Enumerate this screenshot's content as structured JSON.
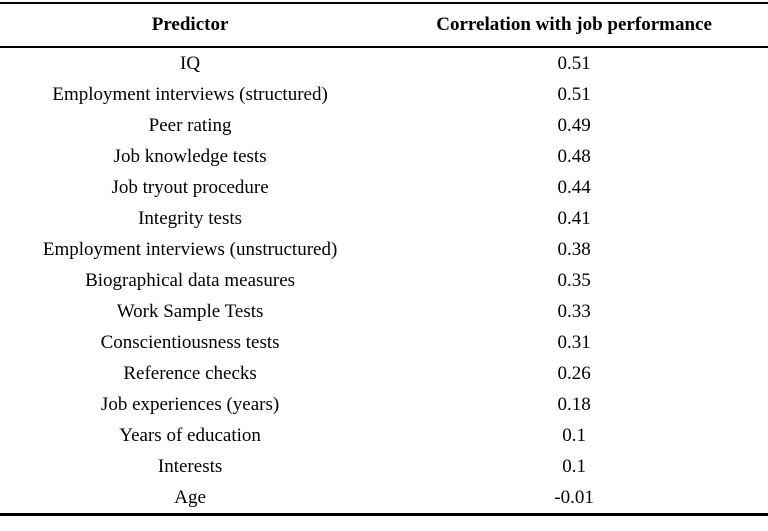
{
  "chart_data": {
    "type": "table",
    "title": "",
    "columns": [
      "Predictor",
      "Correlation with job performance"
    ],
    "rows": [
      {
        "predictor": "IQ",
        "correlation": "0.51"
      },
      {
        "predictor": "Employment interviews (structured)",
        "correlation": "0.51"
      },
      {
        "predictor": "Peer rating",
        "correlation": "0.49"
      },
      {
        "predictor": "Job knowledge tests",
        "correlation": "0.48"
      },
      {
        "predictor": "Job tryout procedure",
        "correlation": "0.44"
      },
      {
        "predictor": "Integrity tests",
        "correlation": "0.41"
      },
      {
        "predictor": "Employment interviews (unstructured)",
        "correlation": "0.38"
      },
      {
        "predictor": "Biographical data measures",
        "correlation": "0.35"
      },
      {
        "predictor": "Work Sample Tests",
        "correlation": "0.33"
      },
      {
        "predictor": "Conscientiousness tests",
        "correlation": "0.31"
      },
      {
        "predictor": "Reference checks",
        "correlation": "0.26"
      },
      {
        "predictor": "Job experiences (years)",
        "correlation": "0.18"
      },
      {
        "predictor": "Years of education",
        "correlation": "0.1"
      },
      {
        "predictor": "Interests",
        "correlation": "0.1"
      },
      {
        "predictor": "Age",
        "correlation": "-0.01"
      }
    ],
    "layout": {
      "grid": "horizontal rules only (top, under header, bottom)",
      "text_align": "center",
      "background_color": "#ffffff",
      "text_color": "#000000",
      "border_color": "#000000"
    }
  }
}
